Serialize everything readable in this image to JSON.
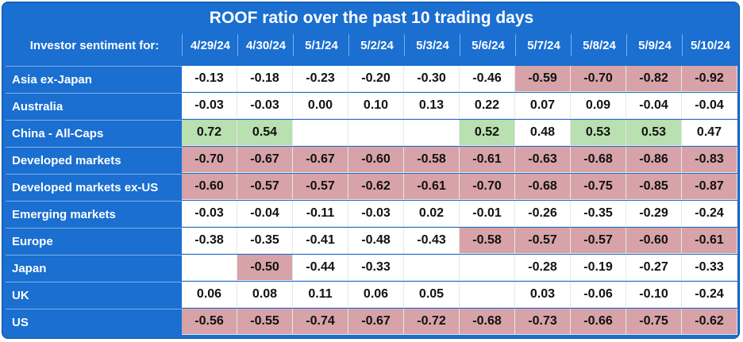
{
  "title": "ROOF ratio over the past 10 trading days",
  "corner_label": "Investor sentiment for:",
  "chart_data": {
    "type": "table",
    "title": "ROOF ratio over the past 10 trading days",
    "columns": [
      "4/29/24",
      "4/30/24",
      "5/1/24",
      "5/2/24",
      "5/3/24",
      "5/6/24",
      "5/7/24",
      "5/8/24",
      "5/9/24",
      "5/10/24"
    ],
    "rows": [
      {
        "label": "Asia ex-Japan",
        "values": [
          "-0.13",
          "-0.18",
          "-0.23",
          "-0.20",
          "-0.30",
          "-0.46",
          "-0.59",
          "-0.70",
          "-0.82",
          "-0.92"
        ],
        "highlight": [
          "",
          "",
          "",
          "",
          "",
          "",
          "neg",
          "neg",
          "neg",
          "neg"
        ]
      },
      {
        "label": "Australia",
        "values": [
          "-0.03",
          "-0.03",
          "0.00",
          "0.10",
          "0.13",
          "0.22",
          "0.07",
          "0.09",
          "-0.04",
          "-0.04"
        ],
        "highlight": [
          "",
          "",
          "",
          "",
          "",
          "",
          "",
          "",
          "",
          ""
        ]
      },
      {
        "label": "China - All-Caps",
        "values": [
          "0.72",
          "0.54",
          "",
          "",
          "",
          "0.52",
          "0.48",
          "0.53",
          "0.53",
          "0.47"
        ],
        "highlight": [
          "pos",
          "pos",
          "",
          "",
          "",
          "pos",
          "",
          "pos",
          "pos",
          ""
        ]
      },
      {
        "label": "Developed markets",
        "values": [
          "-0.70",
          "-0.67",
          "-0.67",
          "-0.60",
          "-0.58",
          "-0.61",
          "-0.63",
          "-0.68",
          "-0.86",
          "-0.83"
        ],
        "highlight": [
          "neg",
          "neg",
          "neg",
          "neg",
          "neg",
          "neg",
          "neg",
          "neg",
          "neg",
          "neg"
        ]
      },
      {
        "label": "Developed markets ex-US",
        "values": [
          "-0.60",
          "-0.57",
          "-0.57",
          "-0.62",
          "-0.61",
          "-0.70",
          "-0.68",
          "-0.75",
          "-0.85",
          "-0.87"
        ],
        "highlight": [
          "neg",
          "neg",
          "neg",
          "neg",
          "neg",
          "neg",
          "neg",
          "neg",
          "neg",
          "neg"
        ]
      },
      {
        "label": "Emerging markets",
        "values": [
          "-0.03",
          "-0.04",
          "-0.11",
          "-0.03",
          "0.02",
          "-0.01",
          "-0.26",
          "-0.35",
          "-0.29",
          "-0.24"
        ],
        "highlight": [
          "",
          "",
          "",
          "",
          "",
          "",
          "",
          "",
          "",
          ""
        ]
      },
      {
        "label": "Europe",
        "values": [
          "-0.38",
          "-0.35",
          "-0.41",
          "-0.48",
          "-0.43",
          "-0.58",
          "-0.57",
          "-0.57",
          "-0.60",
          "-0.61"
        ],
        "highlight": [
          "",
          "",
          "",
          "",
          "",
          "neg",
          "neg",
          "neg",
          "neg",
          "neg"
        ]
      },
      {
        "label": "Japan",
        "values": [
          "",
          "-0.50",
          "-0.44",
          "-0.33",
          "",
          "",
          "-0.28",
          "-0.19",
          "-0.27",
          "-0.33"
        ],
        "highlight": [
          "",
          "neg",
          "",
          "",
          "",
          "",
          "",
          "",
          "",
          ""
        ]
      },
      {
        "label": "UK",
        "values": [
          "0.06",
          "0.08",
          "0.11",
          "0.06",
          "0.05",
          "",
          "0.03",
          "-0.06",
          "-0.10",
          "-0.24"
        ],
        "highlight": [
          "",
          "",
          "",
          "",
          "",
          "",
          "",
          "",
          "",
          ""
        ]
      },
      {
        "label": "US",
        "values": [
          "-0.56",
          "-0.55",
          "-0.74",
          "-0.67",
          "-0.72",
          "-0.68",
          "-0.73",
          "-0.66",
          "-0.75",
          "-0.62"
        ],
        "highlight": [
          "neg",
          "neg",
          "neg",
          "neg",
          "neg",
          "neg",
          "neg",
          "neg",
          "neg",
          "neg"
        ]
      }
    ],
    "highlight_colors": {
      "neg": "#d7a3a8",
      "pos": "#b8e0b0"
    }
  },
  "colors": {
    "header_bg": "#1a6fd0",
    "header_text": "#ffffff",
    "cell_bg": "#ffffff"
  }
}
